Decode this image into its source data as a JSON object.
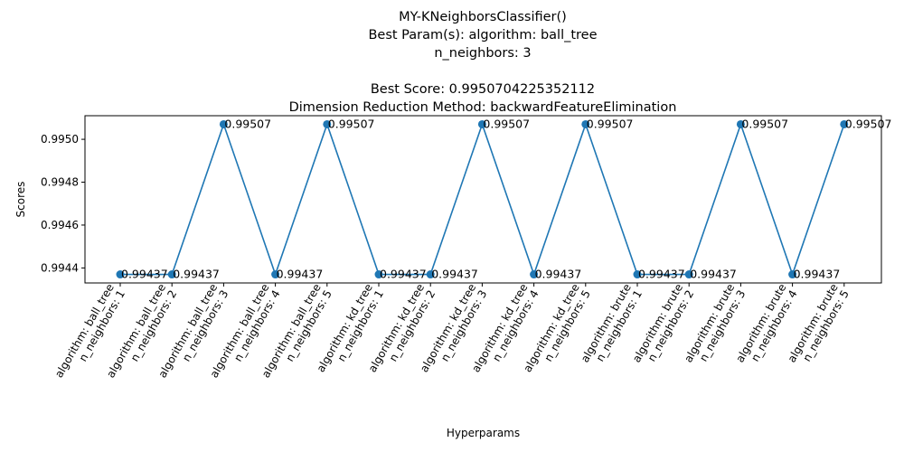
{
  "chart_data": {
    "type": "line",
    "title_lines": [
      "MY-KNeighborsClassifier()",
      "Best Param(s): algorithm: ball_tree",
      "n_neighbors: 3",
      "",
      "Best Score: 0.9950704225352112",
      "Dimension Reduction Method: backwardFeatureElimination"
    ],
    "xlabel": "Hyperparams",
    "ylabel": "Scores",
    "ylim": [
      0.99433,
      0.99511
    ],
    "yticks": [
      "0.9944",
      "0.9946",
      "0.9948",
      "0.9950"
    ],
    "grid": false,
    "color": "#1f77b4",
    "categories": [
      [
        "algorithm: ball_tree",
        "n_neighbors: 1"
      ],
      [
        "algorithm: ball_tree",
        "n_neighbors: 2"
      ],
      [
        "algorithm: ball_tree",
        "n_neighbors: 3"
      ],
      [
        "algorithm: ball_tree",
        "n_neighbors: 4"
      ],
      [
        "algorithm: ball_tree",
        "n_neighbors: 5"
      ],
      [
        "algorithm: kd_tree",
        "n_neighbors: 1"
      ],
      [
        "algorithm: kd_tree",
        "n_neighbors: 2"
      ],
      [
        "algorithm: kd_tree",
        "n_neighbors: 3"
      ],
      [
        "algorithm: kd_tree",
        "n_neighbors: 4"
      ],
      [
        "algorithm: kd_tree",
        "n_neighbors: 5"
      ],
      [
        "algorithm: brute",
        "n_neighbors: 1"
      ],
      [
        "algorithm: brute",
        "n_neighbors: 2"
      ],
      [
        "algorithm: brute",
        "n_neighbors: 3"
      ],
      [
        "algorithm: brute",
        "n_neighbors: 4"
      ],
      [
        "algorithm: brute",
        "n_neighbors: 5"
      ]
    ],
    "values": [
      0.99437,
      0.99437,
      0.99507,
      0.99437,
      0.99507,
      0.99437,
      0.99437,
      0.99507,
      0.99437,
      0.99507,
      0.99437,
      0.99437,
      0.99507,
      0.99437,
      0.99507
    ],
    "data_labels": [
      "0.99437",
      "0.99437",
      "0.99507",
      "0.99437",
      "0.99507",
      "0.99437",
      "0.99437",
      "0.99507",
      "0.99437",
      "0.99507",
      "0.99437",
      "0.99437",
      "0.99507",
      "0.99437",
      "0.99507"
    ]
  }
}
